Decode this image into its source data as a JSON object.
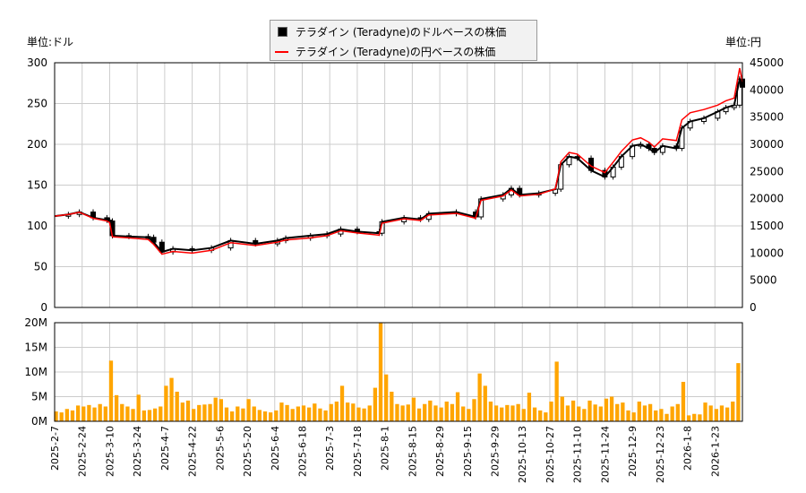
{
  "legend": {
    "usd_label": "テラダイン (Teradyne)のドルベースの株価",
    "jpy_label": "テラダイン (Teradyne)の円ベースの株価"
  },
  "units": {
    "left": "単位:ドル",
    "right": "単位:円"
  },
  "colors": {
    "usd": "#000000",
    "jpy": "#ff0000",
    "volume": "#ffa500",
    "grid": "#cccccc"
  },
  "chart_data": [
    {
      "type": "line",
      "title": "",
      "x_tick_labels": [
        "2025-2-7",
        "2025-2-24",
        "2025-3-10",
        "2025-3-24",
        "2025-4-7",
        "2025-4-22",
        "2025-5-6",
        "2025-5-20",
        "2025-6-4",
        "2025-6-18",
        "2025-7-3",
        "2025-7-18",
        "2025-8-1",
        "2025-8-15",
        "2025-8-29",
        "2025-9-15",
        "2025-9-29",
        "2025-10-13",
        "2025-10-27",
        "2025-11-10",
        "2025-11-24",
        "2025-12-9",
        "2025-12-23",
        "2026-1-8",
        "2026-1-23"
      ],
      "x_tick_trading_day": [
        0,
        10,
        20,
        30,
        40,
        50,
        60,
        70,
        80,
        90,
        100,
        110,
        120,
        130,
        140,
        150,
        160,
        170,
        180,
        190,
        200,
        210,
        220,
        230,
        240
      ],
      "x_range_trading_days": [
        0,
        250
      ],
      "y_left": {
        "range": [
          0,
          300
        ],
        "ticks": [
          0,
          50,
          100,
          150,
          200,
          250,
          300
        ]
      },
      "y_right": {
        "range": [
          0,
          45000
        ],
        "ticks": [
          0,
          5000,
          10000,
          15000,
          20000,
          25000,
          30000,
          35000,
          40000,
          45000
        ]
      },
      "grid": true,
      "legend_position": "top-center",
      "series": [
        {
          "name": "テラダイン (Teradyne)のドルベースの株価",
          "style": "candlestick",
          "axis": "left",
          "x": [
            0,
            5,
            9,
            14,
            19,
            20,
            21,
            27,
            34,
            36,
            39,
            43,
            50,
            57,
            64,
            73,
            81,
            84,
            93,
            99,
            104,
            110,
            118,
            119,
            127,
            133,
            136,
            146,
            153,
            155,
            163,
            166,
            169,
            176,
            182,
            184,
            187,
            190,
            195,
            200,
            203,
            206,
            210,
            213,
            216,
            218,
            221,
            226,
            228,
            231,
            236,
            241,
            244,
            247,
            249,
            250
          ],
          "values": [
            112,
            114,
            117,
            110,
            107,
            106,
            88,
            87,
            86,
            80,
            68,
            72,
            70,
            73,
            82,
            78,
            82,
            85,
            88,
            90,
            96,
            93,
            91,
            105,
            110,
            108,
            115,
            117,
            111,
            133,
            138,
            146,
            138,
            140,
            145,
            175,
            185,
            183,
            168,
            160,
            172,
            185,
            198,
            200,
            195,
            190,
            198,
            195,
            220,
            228,
            232,
            240,
            245,
            248,
            280,
            270
          ]
        },
        {
          "name": "テラダイン (Teradyne)の円ベースの株価",
          "style": "line",
          "axis": "right",
          "x": [
            0,
            5,
            9,
            14,
            19,
            20,
            21,
            27,
            34,
            36,
            39,
            43,
            50,
            57,
            64,
            73,
            81,
            84,
            93,
            99,
            104,
            110,
            118,
            119,
            127,
            133,
            136,
            146,
            153,
            155,
            163,
            166,
            169,
            176,
            182,
            184,
            187,
            190,
            195,
            200,
            203,
            206,
            210,
            213,
            216,
            218,
            221,
            226,
            228,
            231,
            236,
            241,
            244,
            247,
            249,
            250
          ],
          "values": [
            16800,
            17100,
            17500,
            16400,
            15900,
            15600,
            13000,
            12800,
            12500,
            11600,
            9800,
            10300,
            10000,
            10500,
            11900,
            11400,
            12000,
            12400,
            12800,
            13200,
            14100,
            13700,
            13300,
            15500,
            16300,
            16000,
            17000,
            17300,
            16400,
            19700,
            20500,
            21600,
            20500,
            20800,
            21800,
            26800,
            28500,
            28200,
            26000,
            24800,
            26700,
            28700,
            30800,
            31200,
            30400,
            29500,
            31000,
            30700,
            34500,
            35800,
            36400,
            37200,
            38000,
            38500,
            44000,
            41500
          ]
        }
      ]
    },
    {
      "type": "bar",
      "title": "",
      "y": {
        "range": [
          0,
          20000000
        ],
        "tick_labels": [
          "0M",
          "5M",
          "10M",
          "15M",
          "20M"
        ],
        "ticks": [
          0,
          5000000,
          10000000,
          15000000,
          20000000
        ]
      },
      "unit": "M",
      "bar_spacing_trading_days": 2,
      "values_millions": [
        2,
        1.8,
        2.5,
        2.2,
        3.2,
        3,
        3.3,
        2.8,
        3.5,
        3,
        12.3,
        5.3,
        3.5,
        3,
        2.5,
        5.4,
        2.2,
        2.3,
        2.6,
        3,
        7.2,
        8.8,
        6,
        3.8,
        4.2,
        2.5,
        3.3,
        3.4,
        3.5,
        4.8,
        4.5,
        2.8,
        2,
        3,
        2.6,
        4.5,
        3,
        2.3,
        2,
        1.8,
        2.2,
        3.8,
        3.3,
        2.5,
        3,
        3.2,
        2.8,
        3.6,
        2.6,
        2.2,
        3.5,
        4,
        7.2,
        3.8,
        3.6,
        2.8,
        2.6,
        3.2,
        6.8,
        20,
        9.5,
        6,
        3.5,
        3.2,
        3.4,
        4.8,
        2.6,
        3.5,
        4.2,
        3.2,
        2.8,
        4,
        3.5,
        5.9,
        3,
        2.5,
        4.5,
        9.7,
        7.2,
        4,
        3.2,
        2.8,
        3.3,
        3.2,
        3.5,
        2.5,
        5.8,
        2.8,
        2.2,
        1.8,
        4,
        12.1,
        5,
        3.2,
        4.2,
        3,
        2.5,
        4.2,
        3.4,
        3,
        4.6,
        5,
        3.5,
        3.8,
        2.2,
        1.8,
        4,
        3.2,
        3.5,
        2.2,
        2.5,
        1.5,
        3,
        3.5,
        8,
        1.2,
        1.5,
        1.4,
        3.8,
        3.2,
        2.5,
        3.2,
        2.8,
        4,
        11.8
      ]
    }
  ]
}
